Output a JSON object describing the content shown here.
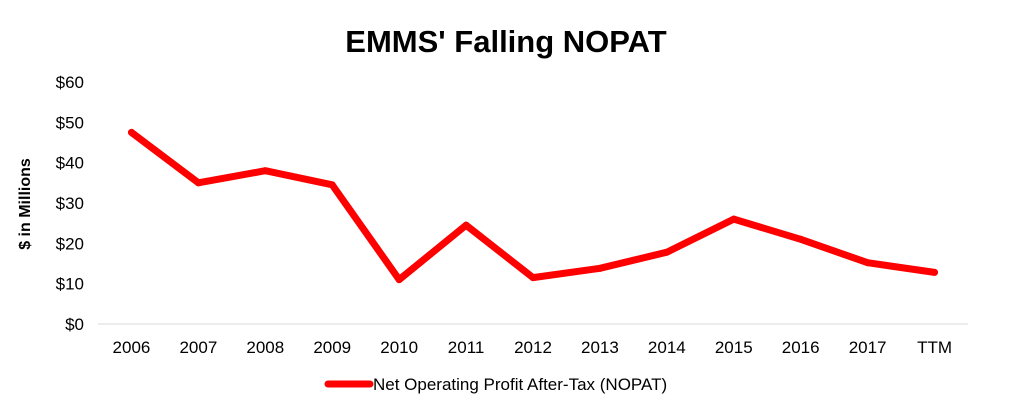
{
  "chart_data": {
    "type": "line",
    "title": "EMMS' Falling NOPAT",
    "xlabel": "",
    "ylabel": "$ in Millions",
    "categories": [
      "2006",
      "2007",
      "2008",
      "2009",
      "2010",
      "2011",
      "2012",
      "2013",
      "2014",
      "2015",
      "2016",
      "2017",
      "TTM"
    ],
    "series": [
      {
        "name": "Net Operating Profit After-Tax (NOPAT)",
        "values": [
          47.5,
          35,
          38,
          34.5,
          11,
          24.5,
          11.5,
          13.8,
          17.8,
          26,
          21,
          15.2,
          12.8
        ],
        "color": "#ff0000"
      }
    ],
    "ylim": [
      0,
      60
    ],
    "yticks": [
      0,
      10,
      20,
      30,
      40,
      50,
      60
    ],
    "ytick_labels": [
      "$0",
      "$10",
      "$20",
      "$30",
      "$40",
      "$50",
      "$60"
    ],
    "grid": false,
    "legend_position": "bottom"
  }
}
